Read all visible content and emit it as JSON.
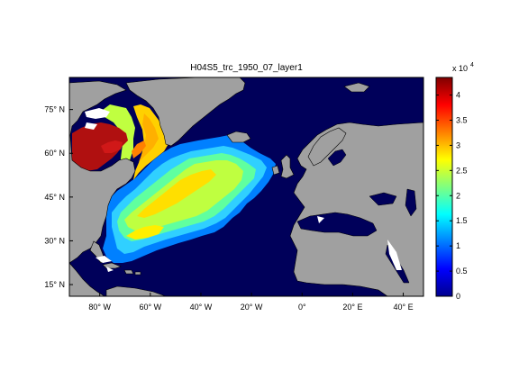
{
  "title": "H04S5_trc_1950_07_layer1",
  "map": {
    "lat_ticks": [
      {
        "value": 75,
        "label": "75° N"
      },
      {
        "value": 60,
        "label": "60° N"
      },
      {
        "value": 45,
        "label": "45° N"
      },
      {
        "value": 30,
        "label": "30° N"
      },
      {
        "value": 15,
        "label": "15° N"
      }
    ],
    "lon_ticks": [
      {
        "value": -80,
        "label": "80° W"
      },
      {
        "value": -60,
        "label": "60° W"
      },
      {
        "value": -40,
        "label": "40° W"
      },
      {
        "value": -20,
        "label": "20° W"
      },
      {
        "value": 0,
        "label": "0°"
      },
      {
        "value": 20,
        "label": "20° E"
      },
      {
        "value": 40,
        "label": "40° E"
      }
    ],
    "lon_range": [
      -92,
      48
    ],
    "lat_range": [
      11,
      86
    ],
    "colors": {
      "land": "#a0a0a0",
      "ocean_zero": "#00005a",
      "coast": "#000000"
    }
  },
  "colorbar": {
    "range": [
      0,
      43500
    ],
    "ticks": [
      {
        "value": 0,
        "label": "0"
      },
      {
        "value": 5000,
        "label": "0.5"
      },
      {
        "value": 10000,
        "label": "1"
      },
      {
        "value": 15000,
        "label": "1.5"
      },
      {
        "value": 20000,
        "label": "2"
      },
      {
        "value": 25000,
        "label": "2.5"
      },
      {
        "value": 30000,
        "label": "3"
      },
      {
        "value": 35000,
        "label": "3.5"
      },
      {
        "value": 40000,
        "label": "4"
      }
    ],
    "multiplier": "x 10",
    "exponent": "4",
    "colormap": "jet"
  }
}
